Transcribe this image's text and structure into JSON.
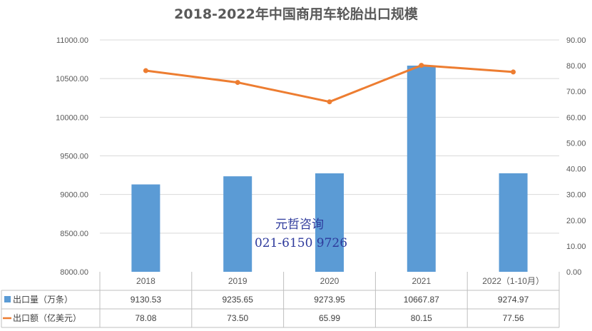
{
  "chart_data": {
    "type": "bar",
    "title": "2018-2022年中国商用车轮胎出口规模",
    "categories": [
      "2018",
      "2019",
      "2020",
      "2021",
      "2022（1-10月）"
    ],
    "series": [
      {
        "name": "出口量（万条）",
        "type": "bar",
        "axis": "left",
        "color": "#5b9bd5",
        "values": [
          9130.53,
          9235.65,
          9273.95,
          10667.87,
          9274.97
        ],
        "labels": [
          "9130.53",
          "9235.65",
          "9273.95",
          "10667.87",
          "9274.97"
        ]
      },
      {
        "name": "出口额（亿美元）",
        "type": "line",
        "axis": "right",
        "color": "#ed7d31",
        "values": [
          78.08,
          73.5,
          65.99,
          80.15,
          77.56
        ],
        "labels": [
          "78.08",
          "73.50",
          "65.99",
          "80.15",
          "77.56"
        ]
      }
    ],
    "y_left": {
      "min": 8000,
      "max": 11000,
      "step": 500,
      "decimals": 2
    },
    "y_right": {
      "min": 0,
      "max": 90,
      "step": 10,
      "decimals": 2
    },
    "grid": true,
    "legend": "data-table"
  },
  "watermark": {
    "line1": "元哲咨询",
    "line2": "021-6150 9726"
  }
}
